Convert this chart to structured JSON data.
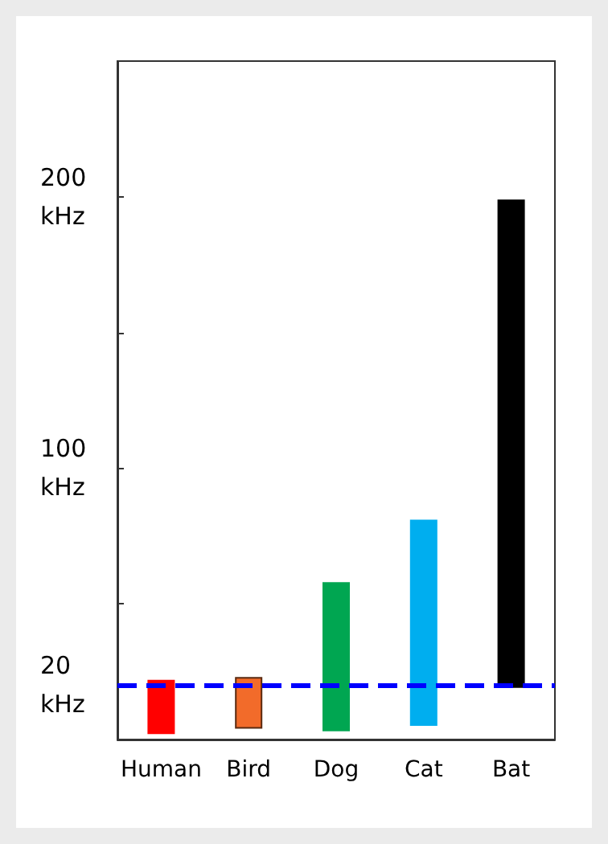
{
  "chart_data": {
    "type": "bar",
    "categories": [
      "Human",
      "Bird",
      "Dog",
      "Cat",
      "Bat"
    ],
    "base": [
      2,
      4,
      3,
      5,
      19
    ],
    "values": [
      20,
      19,
      55,
      76,
      180
    ],
    "colors": [
      "#ff0000",
      "#f26b2a",
      "#00a651",
      "#00aeef",
      "#000000"
    ],
    "ylim": [
      0,
      250
    ],
    "yticks": [
      {
        "value": 20,
        "label": "20\nkHz"
      },
      {
        "value": 50,
        "label": null
      },
      {
        "value": 100,
        "label": "100\nkHz"
      },
      {
        "value": 150,
        "label": null
      },
      {
        "value": 200,
        "label": "200\nkHz"
      }
    ],
    "ref_lines": [
      {
        "axis": "y",
        "value": 20,
        "label": null,
        "color": "#0000ff",
        "line_style": "dashed"
      }
    ],
    "grid": false
  }
}
